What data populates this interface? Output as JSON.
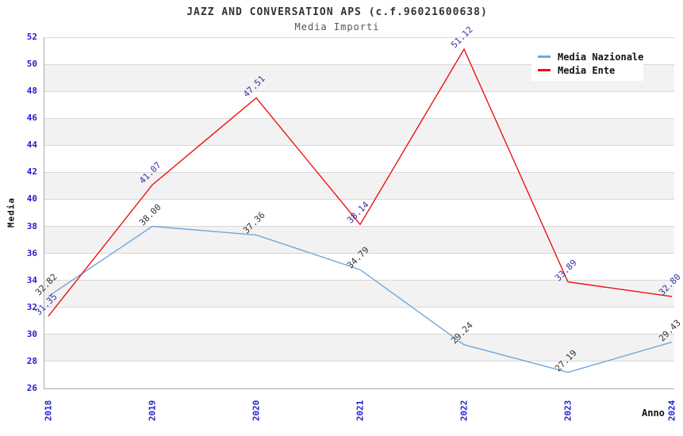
{
  "header": {
    "title": "JAZZ AND CONVERSATION APS (c.f.96021600638)",
    "subtitle": "Media Importi"
  },
  "chart_data": {
    "type": "line",
    "title": "JAZZ AND CONVERSATION APS (c.f.96021600638)",
    "subtitle": "Media Importi",
    "categories": [
      "2018",
      "2019",
      "2020",
      "2021",
      "2022",
      "2023",
      "2024"
    ],
    "series": [
      {
        "name": "Media Nazionale",
        "color": "#6fa8dc",
        "label_color": "#333333",
        "values": [
          32.82,
          38.0,
          37.36,
          34.79,
          29.24,
          27.19,
          29.43
        ],
        "labels": [
          "32.82",
          "38.00",
          "37.36",
          "34.79",
          "29.24",
          "27.19",
          "29.43"
        ]
      },
      {
        "name": "Media Ente",
        "color": "#ee1111",
        "label_color": "#3333aa",
        "values": [
          31.35,
          41.07,
          47.51,
          38.14,
          51.12,
          33.89,
          32.8
        ],
        "labels": [
          "31.35",
          "41.07",
          "47.51",
          "38.14",
          "51.12",
          "33.89",
          "32.80"
        ]
      }
    ],
    "xlabel": "Anno",
    "ylabel": "Media",
    "ylim": [
      26,
      52
    ],
    "y_ticks": [
      26,
      28,
      30,
      32,
      34,
      36,
      38,
      40,
      42,
      44,
      46,
      48,
      50,
      52
    ],
    "grid": "horizontal gridlines every 2 units with alternating shaded bands",
    "legend_position": "top-right"
  },
  "colors": {
    "tick_label": "#2222cc",
    "band_shade": "#f2f2f2",
    "gridline": "#d8d8d8",
    "spine": "#ababab"
  }
}
